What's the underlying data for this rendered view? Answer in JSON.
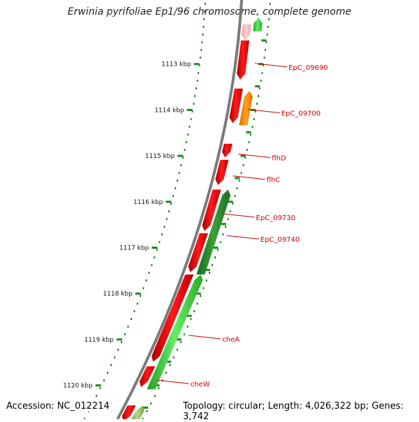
{
  "title": "Erwinia pyrifoliae Ep1/96 chromosome, complete genome",
  "footer": {
    "accession": "Accession: NC_012214",
    "topology": "Topology: circular; Length: 4,026,322 bp; Genes: 3,742"
  },
  "colors": {
    "backbone": "#7a7a7a",
    "tick": "#1a8a1a",
    "gene_red": "#ff0000",
    "gene_pink": "#ffc0c0",
    "gene_orange": "#ff9900",
    "gene_darkgreen": "#2e8b2e",
    "gene_green": "#33cc33",
    "label": "#cc0000"
  },
  "ruler": {
    "unit_label": "kbp",
    "ticks": [
      1113,
      1114,
      1115,
      1116,
      1117,
      1118,
      1119,
      1120
    ]
  },
  "genes": [
    {
      "label": "",
      "color": "pink",
      "track": "inner",
      "start_kbp": 1112.15,
      "end_kbp": 1112.5,
      "strand": "-"
    },
    {
      "label": "",
      "color": "green",
      "track": "outer",
      "start_kbp": 1112.0,
      "end_kbp": 1112.3,
      "strand": "+"
    },
    {
      "label": "EpC_09690",
      "color": "red",
      "track": "inner",
      "start_kbp": 1112.5,
      "end_kbp": 1113.35,
      "strand": "-"
    },
    {
      "label": "EpC_09700",
      "color": "red",
      "track": "inner",
      "start_kbp": 1113.55,
      "end_kbp": 1114.3,
      "strand": "-"
    },
    {
      "label": "",
      "color": "orange",
      "track": "outer",
      "start_kbp": 1113.6,
      "end_kbp": 1114.35,
      "strand": "+"
    },
    {
      "label": "flhD",
      "color": "red",
      "track": "inner",
      "start_kbp": 1114.75,
      "end_kbp": 1115.05,
      "strand": "-"
    },
    {
      "label": "flhC",
      "color": "red",
      "track": "inner",
      "start_kbp": 1115.1,
      "end_kbp": 1115.65,
      "strand": "-"
    },
    {
      "label": "EpC_09730",
      "color": "red",
      "track": "inner",
      "start_kbp": 1115.75,
      "end_kbp": 1116.65,
      "strand": "-"
    },
    {
      "label": "EpC_09740",
      "color": "darkgreen",
      "track": "outer",
      "start_kbp": 1115.75,
      "end_kbp": 1117.6,
      "strand": "+"
    },
    {
      "label": "",
      "color": "red",
      "track": "inner",
      "start_kbp": 1116.7,
      "end_kbp": 1117.55,
      "strand": "-"
    },
    {
      "label": "cheA",
      "color": "green",
      "track": "outer",
      "start_kbp": 1117.6,
      "end_kbp": 1120.1,
      "strand": "+"
    },
    {
      "label": "",
      "color": "red",
      "track": "inner",
      "start_kbp": 1117.6,
      "end_kbp": 1119.5,
      "strand": "-"
    },
    {
      "label": "cheW",
      "color": "red",
      "track": "inner",
      "start_kbp": 1119.6,
      "end_kbp": 1120.05,
      "strand": "-"
    },
    {
      "label": "",
      "color": "red",
      "track": "inner",
      "start_kbp": 1120.45,
      "end_kbp": 1120.8,
      "strand": "-"
    },
    {
      "label": "",
      "color": "olive",
      "track": "outer",
      "start_kbp": 1120.45,
      "end_kbp": 1120.8,
      "strand": "+"
    }
  ]
}
